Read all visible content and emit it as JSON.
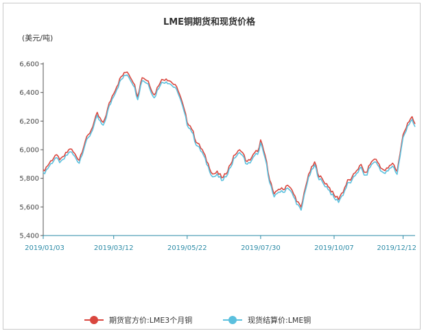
{
  "chart_data": {
    "type": "line",
    "title": "LME铜期货和现货价格",
    "unit_label": "(美元/吨)",
    "ylim": [
      5400,
      6600
    ],
    "yticks": [
      "6,600",
      "6,400",
      "6,200",
      "6,000",
      "5,800",
      "5,600",
      "5,400"
    ],
    "ytick_values": [
      6600,
      6400,
      6200,
      6000,
      5800,
      5600,
      5400
    ],
    "xticks": [
      "2019/01/03",
      "2019/03/12",
      "2019/05/22",
      "2019/07/30",
      "2019/10/07",
      "2019/12/12"
    ],
    "xtick_index": [
      0,
      47,
      96,
      145,
      194,
      240
    ],
    "x_count": 248,
    "grid": false,
    "legend_position": "bottom",
    "series": [
      {
        "name": "期货官方价:LME3个月铜",
        "color": "#d9463e",
        "points": [
          [
            0,
            5850
          ],
          [
            8,
            5960
          ],
          [
            12,
            5930
          ],
          [
            18,
            6010
          ],
          [
            24,
            5930
          ],
          [
            28,
            6060
          ],
          [
            32,
            6140
          ],
          [
            36,
            6250
          ],
          [
            40,
            6180
          ],
          [
            44,
            6320
          ],
          [
            47,
            6400
          ],
          [
            52,
            6510
          ],
          [
            56,
            6550
          ],
          [
            60,
            6480
          ],
          [
            63,
            6380
          ],
          [
            66,
            6510
          ],
          [
            70,
            6480
          ],
          [
            74,
            6380
          ],
          [
            78,
            6480
          ],
          [
            82,
            6500
          ],
          [
            86,
            6470
          ],
          [
            90,
            6420
          ],
          [
            94,
            6280
          ],
          [
            96,
            6200
          ],
          [
            99,
            6150
          ],
          [
            102,
            6060
          ],
          [
            106,
            6000
          ],
          [
            110,
            5900
          ],
          [
            113,
            5830
          ],
          [
            116,
            5840
          ],
          [
            120,
            5800
          ],
          [
            124,
            5880
          ],
          [
            128,
            5970
          ],
          [
            132,
            6000
          ],
          [
            136,
            5910
          ],
          [
            140,
            5960
          ],
          [
            144,
            6010
          ],
          [
            145,
            6060
          ],
          [
            148,
            5960
          ],
          [
            151,
            5800
          ],
          [
            154,
            5680
          ],
          [
            157,
            5730
          ],
          [
            160,
            5720
          ],
          [
            163,
            5760
          ],
          [
            166,
            5710
          ],
          [
            169,
            5650
          ],
          [
            172,
            5590
          ],
          [
            175,
            5750
          ],
          [
            178,
            5850
          ],
          [
            181,
            5910
          ],
          [
            184,
            5820
          ],
          [
            187,
            5780
          ],
          [
            190,
            5750
          ],
          [
            194,
            5680
          ],
          [
            197,
            5660
          ],
          [
            200,
            5710
          ],
          [
            203,
            5780
          ],
          [
            206,
            5800
          ],
          [
            209,
            5860
          ],
          [
            212,
            5890
          ],
          [
            215,
            5830
          ],
          [
            218,
            5900
          ],
          [
            221,
            5940
          ],
          [
            224,
            5900
          ],
          [
            227,
            5850
          ],
          [
            230,
            5870
          ],
          [
            233,
            5910
          ],
          [
            236,
            5850
          ],
          [
            240,
            6100
          ],
          [
            243,
            6190
          ],
          [
            246,
            6220
          ],
          [
            248,
            6180
          ]
        ]
      },
      {
        "name": "现货结算价:LME铜",
        "color": "#5bc0de",
        "points": [
          [
            0,
            5830
          ],
          [
            8,
            5940
          ],
          [
            12,
            5910
          ],
          [
            18,
            5990
          ],
          [
            24,
            5910
          ],
          [
            28,
            6040
          ],
          [
            32,
            6120
          ],
          [
            36,
            6230
          ],
          [
            40,
            6160
          ],
          [
            44,
            6300
          ],
          [
            47,
            6380
          ],
          [
            52,
            6490
          ],
          [
            56,
            6530
          ],
          [
            60,
            6460
          ],
          [
            63,
            6360
          ],
          [
            66,
            6490
          ],
          [
            70,
            6460
          ],
          [
            74,
            6360
          ],
          [
            78,
            6460
          ],
          [
            82,
            6480
          ],
          [
            86,
            6450
          ],
          [
            90,
            6400
          ],
          [
            94,
            6260
          ],
          [
            96,
            6180
          ],
          [
            99,
            6130
          ],
          [
            102,
            6040
          ],
          [
            106,
            5980
          ],
          [
            110,
            5880
          ],
          [
            113,
            5810
          ],
          [
            116,
            5820
          ],
          [
            120,
            5780
          ],
          [
            124,
            5860
          ],
          [
            128,
            5950
          ],
          [
            132,
            5980
          ],
          [
            136,
            5890
          ],
          [
            140,
            5940
          ],
          [
            144,
            5990
          ],
          [
            145,
            6040
          ],
          [
            148,
            5940
          ],
          [
            151,
            5780
          ],
          [
            154,
            5660
          ],
          [
            157,
            5710
          ],
          [
            160,
            5700
          ],
          [
            163,
            5740
          ],
          [
            166,
            5690
          ],
          [
            169,
            5630
          ],
          [
            172,
            5560
          ],
          [
            175,
            5730
          ],
          [
            178,
            5830
          ],
          [
            181,
            5890
          ],
          [
            184,
            5800
          ],
          [
            187,
            5760
          ],
          [
            190,
            5730
          ],
          [
            194,
            5650
          ],
          [
            197,
            5630
          ],
          [
            200,
            5690
          ],
          [
            203,
            5760
          ],
          [
            206,
            5780
          ],
          [
            209,
            5840
          ],
          [
            212,
            5870
          ],
          [
            215,
            5810
          ],
          [
            218,
            5880
          ],
          [
            221,
            5920
          ],
          [
            224,
            5880
          ],
          [
            227,
            5830
          ],
          [
            230,
            5850
          ],
          [
            233,
            5890
          ],
          [
            236,
            5830
          ],
          [
            240,
            6080
          ],
          [
            243,
            6170
          ],
          [
            246,
            6200
          ],
          [
            248,
            6160
          ]
        ]
      }
    ]
  }
}
